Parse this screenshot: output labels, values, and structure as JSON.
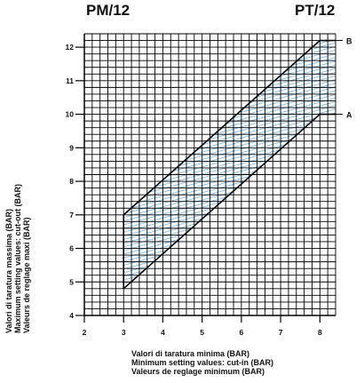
{
  "chart_data": {
    "type": "area",
    "title_left": "PM/12",
    "title_right": "PT/12",
    "xlabel_lines": [
      "Valori di taratura  minima (BAR)",
      "Minimum setting values: cut-in (BAR)",
      "Valeurs de reglage minimum (BAR)"
    ],
    "ylabel_lines": [
      "Valori di taratura massima (BAR)",
      "Maximum setting values: cut-out (BAR)",
      "Valeurs de reglage maxi (BAR)"
    ],
    "xlim": [
      2,
      8.4
    ],
    "ylim": [
      4,
      12.4
    ],
    "x_ticks": [
      2,
      3,
      4,
      5,
      6,
      7,
      8
    ],
    "y_ticks": [
      4,
      5,
      6,
      7,
      8,
      9,
      10,
      11,
      12
    ],
    "grid": true,
    "series": [
      {
        "name": "B",
        "x": [
          3,
          8,
          8.4
        ],
        "y": [
          7,
          12.2,
          12.2
        ]
      },
      {
        "name": "A",
        "x": [
          3,
          8,
          8.4
        ],
        "y": [
          4.8,
          10,
          10
        ]
      }
    ],
    "band_color": "#5aa8e0",
    "line_color": "#000000"
  }
}
